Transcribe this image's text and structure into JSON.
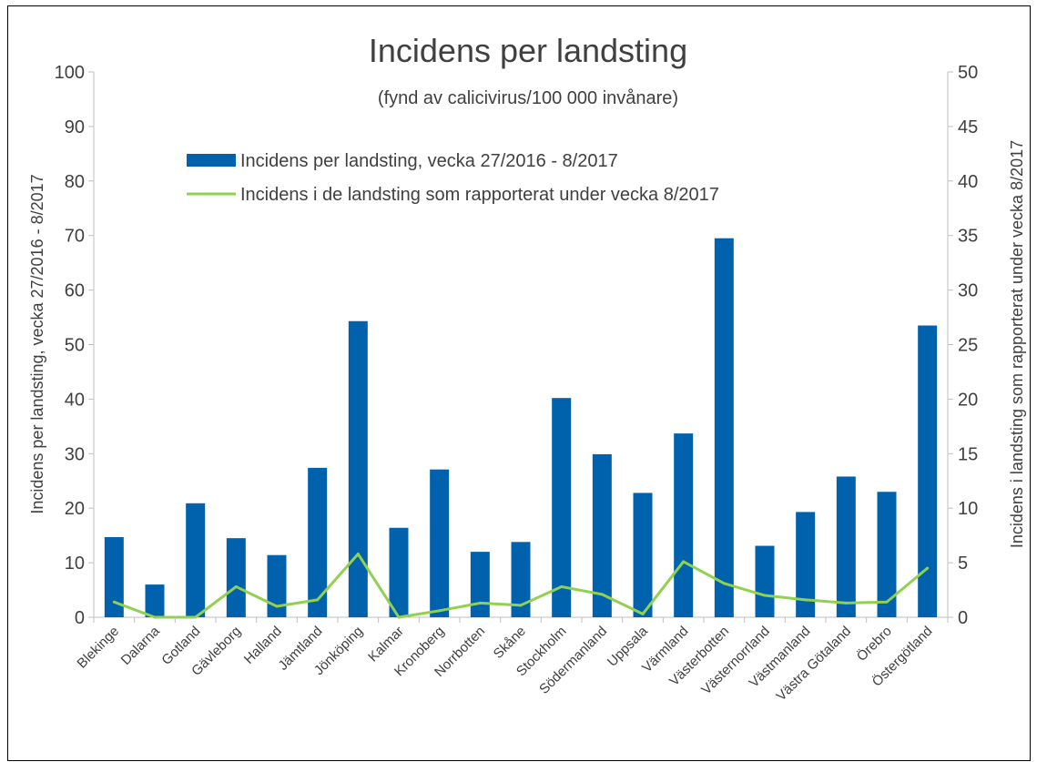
{
  "chart_data": {
    "type": "bar",
    "title": "Incidens per landsting",
    "subtitle": "(fynd av calicivirus/100 000 invånare)",
    "ylabel": "Incidens per landsting, vecka 27/2016 - 8/2017",
    "y2label": "Incidens i landsting som rapporterat under vecka 8/2017",
    "ylim": [
      0,
      100
    ],
    "y2lim": [
      0,
      50
    ],
    "yticks": [
      0,
      10,
      20,
      30,
      40,
      50,
      60,
      70,
      80,
      90,
      100
    ],
    "y2ticks": [
      0,
      5,
      10,
      15,
      20,
      25,
      30,
      35,
      40,
      45,
      50
    ],
    "grid": false,
    "legend_position": "top-left",
    "categories": [
      "Blekinge",
      "Dalarna",
      "Gotland",
      "Gävleborg",
      "Halland",
      "Jämtland",
      "Jönköping",
      "Kalmar",
      "Kronoberg",
      "Norrbotten",
      "Skåne",
      "Stockholm",
      "Södermanland",
      "Uppsala",
      "Värmland",
      "Västerbotten",
      "Västernorrland",
      "Västmanland",
      "Västra Götaland",
      "Örebro",
      "Östergötland"
    ],
    "series": [
      {
        "name": "Incidens per landsting, vecka 27/2016 - 8/2017",
        "type": "bar",
        "axis": "left",
        "color": "#0062ac",
        "values": [
          14.7,
          6.0,
          20.9,
          14.5,
          11.4,
          27.4,
          54.3,
          16.4,
          27.1,
          12.0,
          13.8,
          40.2,
          29.9,
          22.8,
          33.7,
          69.5,
          13.1,
          19.3,
          25.8,
          23.0,
          53.5
        ]
      },
      {
        "name": "Incidens i de landsting som rapporterat under vecka 8/2017",
        "type": "line",
        "axis": "right",
        "color": "#92d050",
        "values": [
          1.4,
          0.0,
          0.0,
          2.8,
          1.0,
          1.6,
          5.8,
          0.0,
          0.6,
          1.3,
          1.1,
          2.8,
          2.1,
          0.3,
          5.1,
          3.1,
          2.0,
          1.6,
          1.3,
          1.4,
          4.5
        ]
      }
    ]
  }
}
